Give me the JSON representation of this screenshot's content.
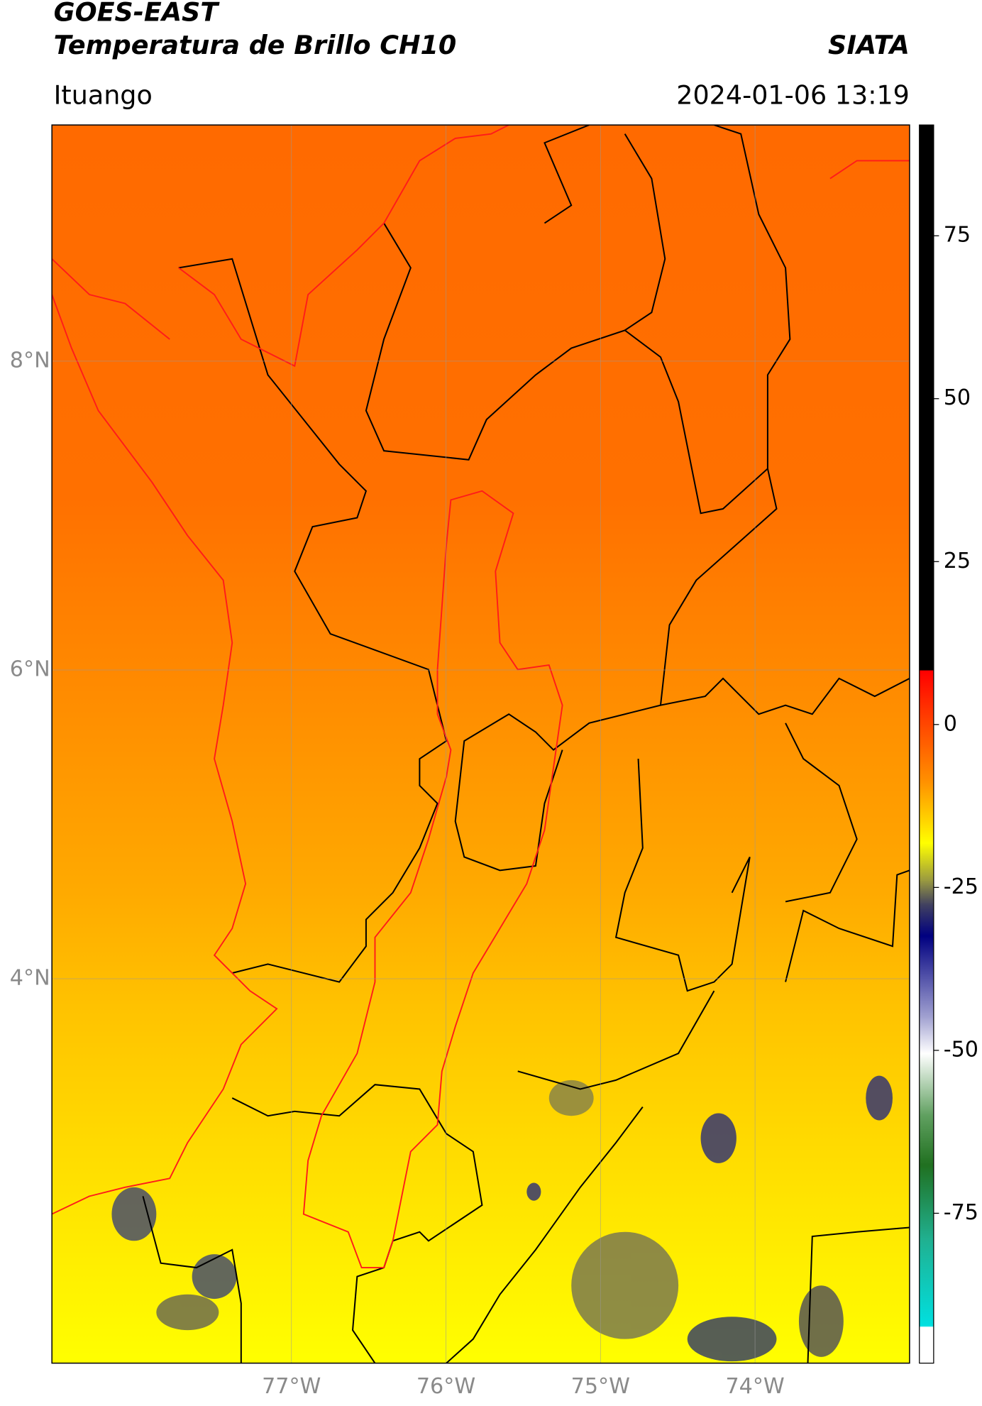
{
  "header": {
    "title": "GOES-EAST",
    "subtitle": "Temperatura de Brillo CH10",
    "source": "SIATA",
    "location": "Ituango",
    "datetime": "2024-01-06 13:19"
  },
  "map": {
    "xlim": [
      -78.55,
      -73.0
    ],
    "ylim": [
      1.51,
      9.53
    ],
    "xticks": [
      {
        "value": -77,
        "label": "77°W"
      },
      {
        "value": -76,
        "label": "76°W"
      },
      {
        "value": -75,
        "label": "75°W"
      },
      {
        "value": -74,
        "label": "74°W"
      }
    ],
    "yticks": [
      {
        "value": 8,
        "label": "8°N"
      },
      {
        "value": 6,
        "label": "6°N"
      },
      {
        "value": 4,
        "label": "4°N"
      }
    ],
    "grid": true
  },
  "colorbar": {
    "lim": [
      -98,
      92
    ],
    "ticks": [
      75,
      50,
      25,
      0,
      -25,
      -50,
      -75
    ]
  }
}
